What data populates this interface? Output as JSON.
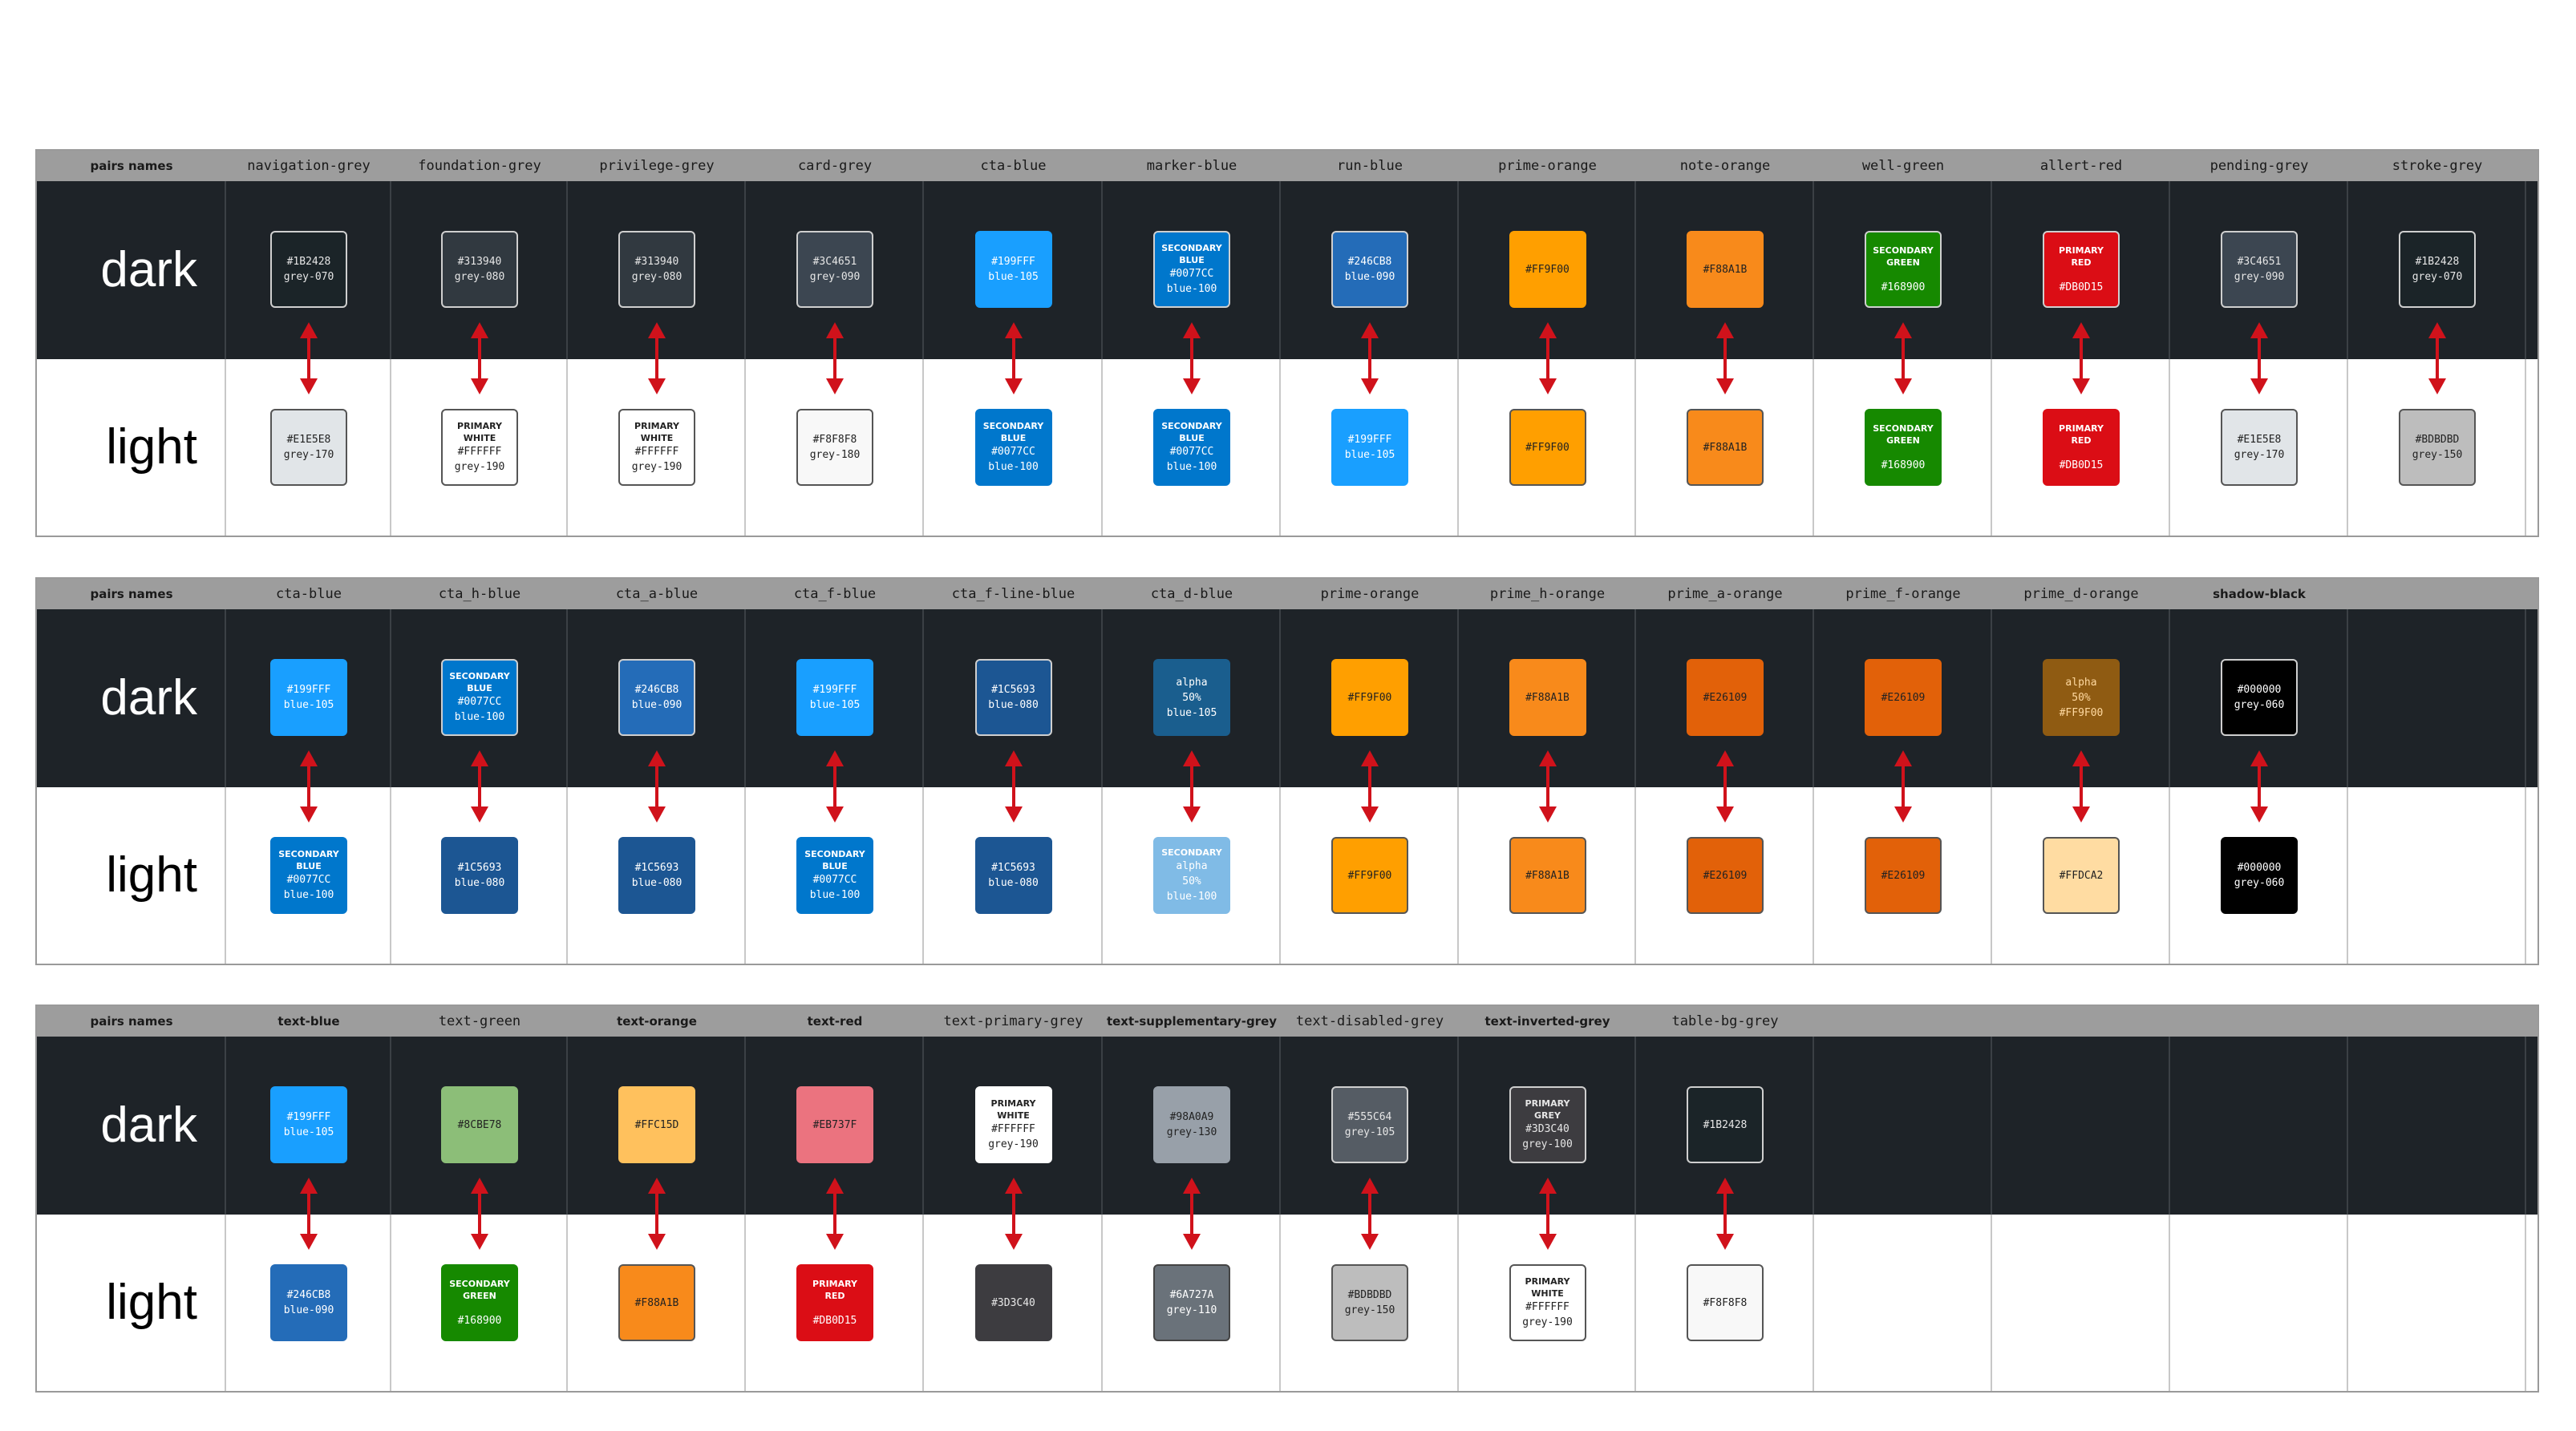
{
  "row_labels": {
    "dark": "dark",
    "light": "light"
  },
  "header_first": "pairs names",
  "tables": [
    {
      "columns": [
        {
          "name": "navigation-grey",
          "bold": false,
          "dark": {
            "lines": [
              "#1B2428",
              "grey-070"
            ],
            "bg": "#1b2428",
            "fg": "#e6e6e6",
            "border": "#cfcfcf"
          },
          "light": {
            "lines": [
              "#E1E5E8",
              "grey-170"
            ],
            "bg": "#e1e5e8",
            "fg": "#222222",
            "border": "#555555"
          }
        },
        {
          "name": "foundation-grey",
          "bold": false,
          "dark": {
            "lines": [
              "#313940",
              "grey-080"
            ],
            "bg": "#313940",
            "fg": "#e6e6e6",
            "border": "#cfcfcf"
          },
          "light": {
            "lines": [
              "PRIMARY",
              "WHITE",
              "#FFFFFF",
              "grey-190"
            ],
            "bg": "#ffffff",
            "fg": "#222222",
            "border": "#555555"
          }
        },
        {
          "name": "privilege-grey",
          "bold": false,
          "dark": {
            "lines": [
              "#313940",
              "grey-080"
            ],
            "bg": "#313940",
            "fg": "#e6e6e6",
            "border": "#cfcfcf"
          },
          "light": {
            "lines": [
              "PRIMARY",
              "WHITE",
              "#FFFFFF",
              "grey-190"
            ],
            "bg": "#ffffff",
            "fg": "#222222",
            "border": "#555555"
          }
        },
        {
          "name": "card-grey",
          "bold": false,
          "dark": {
            "lines": [
              "#3C4651",
              "grey-090"
            ],
            "bg": "#3c4651",
            "fg": "#e6e6e6",
            "border": "#cfcfcf"
          },
          "light": {
            "lines": [
              "#F8F8F8",
              "grey-180"
            ],
            "bg": "#f8f8f8",
            "fg": "#222222",
            "border": "#555555"
          }
        },
        {
          "name": "cta-blue",
          "bold": false,
          "dark": {
            "lines": [
              "#199FFF",
              "blue-105"
            ],
            "bg": "#199fff",
            "fg": "#ffffff",
            "border": "#199fff"
          },
          "light": {
            "lines": [
              "SECONDARY",
              "BLUE",
              "#0077CC",
              "blue-100"
            ],
            "bg": "#0077cc",
            "fg": "#ffffff",
            "border": "#0077cc"
          }
        },
        {
          "name": "marker-blue",
          "bold": false,
          "dark": {
            "lines": [
              "SECONDARY",
              "BLUE",
              "#0077CC",
              "blue-100"
            ],
            "bg": "#0077cc",
            "fg": "#ffffff",
            "border": "#cfcfcf"
          },
          "light": {
            "lines": [
              "SECONDARY",
              "BLUE",
              "#0077CC",
              "blue-100"
            ],
            "bg": "#0077cc",
            "fg": "#ffffff",
            "border": "#0077cc"
          }
        },
        {
          "name": "run-blue",
          "bold": false,
          "dark": {
            "lines": [
              "#246CB8",
              "blue-090"
            ],
            "bg": "#246cb8",
            "fg": "#ffffff",
            "border": "#cfcfcf"
          },
          "light": {
            "lines": [
              "#199FFF",
              "blue-105"
            ],
            "bg": "#199fff",
            "fg": "#ffffff",
            "border": "#199fff"
          }
        },
        {
          "name": "prime-orange",
          "bold": false,
          "dark": {
            "lines": [
              "#FF9F00"
            ],
            "bg": "#ff9f00",
            "fg": "#222222",
            "border": "#ff9f00"
          },
          "light": {
            "lines": [
              "#FF9F00"
            ],
            "bg": "#ff9f00",
            "fg": "#222222",
            "border": "#555555"
          }
        },
        {
          "name": "note-orange",
          "bold": false,
          "dark": {
            "lines": [
              "#F88A1B"
            ],
            "bg": "#f88a1b",
            "fg": "#222222",
            "border": "#f88a1b"
          },
          "light": {
            "lines": [
              "#F88A1B"
            ],
            "bg": "#f88a1b",
            "fg": "#222222",
            "border": "#555555"
          }
        },
        {
          "name": "well-green",
          "bold": false,
          "dark": {
            "lines": [
              "SECONDARY",
              "GREEN",
              "",
              "#168900"
            ],
            "bg": "#168900",
            "fg": "#ffffff",
            "border": "#cfcfcf"
          },
          "light": {
            "lines": [
              "SECONDARY",
              "GREEN",
              "",
              "#168900"
            ],
            "bg": "#168900",
            "fg": "#ffffff",
            "border": "#168900"
          }
        },
        {
          "name": "allert-red",
          "bold": false,
          "dark": {
            "lines": [
              "PRIMARY",
              "RED",
              "",
              "#DB0D15"
            ],
            "bg": "#db0d15",
            "fg": "#ffffff",
            "border": "#cfcfcf"
          },
          "light": {
            "lines": [
              "PRIMARY",
              "RED",
              "",
              "#DB0D15"
            ],
            "bg": "#db0d15",
            "fg": "#ffffff",
            "border": "#db0d15"
          }
        },
        {
          "name": "pending-grey",
          "bold": false,
          "dark": {
            "lines": [
              "#3C4651",
              "grey-090"
            ],
            "bg": "#3c4651",
            "fg": "#e6e6e6",
            "border": "#cfcfcf"
          },
          "light": {
            "lines": [
              "#E1E5E8",
              "grey-170"
            ],
            "bg": "#e1e5e8",
            "fg": "#222222",
            "border": "#555555"
          }
        },
        {
          "name": "stroke-grey",
          "bold": false,
          "dark": {
            "lines": [
              "#1B2428",
              "grey-070"
            ],
            "bg": "#1b2428",
            "fg": "#e6e6e6",
            "border": "#cfcfcf"
          },
          "light": {
            "lines": [
              "#BDBDBD",
              "grey-150"
            ],
            "bg": "#bdbdbd",
            "fg": "#222222",
            "border": "#555555"
          }
        }
      ]
    },
    {
      "columns": [
        {
          "name": "cta-blue",
          "bold": false,
          "dark": {
            "lines": [
              "#199FFF",
              "blue-105"
            ],
            "bg": "#199fff",
            "fg": "#ffffff",
            "border": "#199fff"
          },
          "light": {
            "lines": [
              "SECONDARY",
              "BLUE",
              "#0077CC",
              "blue-100"
            ],
            "bg": "#0077cc",
            "fg": "#ffffff",
            "border": "#0077cc"
          }
        },
        {
          "name": "cta_h-blue",
          "bold": false,
          "dark": {
            "lines": [
              "SECONDARY",
              "BLUE",
              "#0077CC",
              "blue-100"
            ],
            "bg": "#0077cc",
            "fg": "#ffffff",
            "border": "#cfcfcf"
          },
          "light": {
            "lines": [
              "#1C5693",
              "blue-080"
            ],
            "bg": "#1c5693",
            "fg": "#ffffff",
            "border": "#1c5693"
          }
        },
        {
          "name": "cta_a-blue",
          "bold": false,
          "dark": {
            "lines": [
              "#246CB8",
              "blue-090"
            ],
            "bg": "#246cb8",
            "fg": "#ffffff",
            "border": "#cfcfcf"
          },
          "light": {
            "lines": [
              "#1C5693",
              "blue-080"
            ],
            "bg": "#1c5693",
            "fg": "#ffffff",
            "border": "#1c5693"
          }
        },
        {
          "name": "cta_f-blue",
          "bold": false,
          "dark": {
            "lines": [
              "#199FFF",
              "blue-105"
            ],
            "bg": "#199fff",
            "fg": "#ffffff",
            "border": "#199fff"
          },
          "light": {
            "lines": [
              "SECONDARY",
              "BLUE",
              "#0077CC",
              "blue-100"
            ],
            "bg": "#0077cc",
            "fg": "#ffffff",
            "border": "#0077cc"
          }
        },
        {
          "name": "cta_f-line-blue",
          "bold": false,
          "dark": {
            "lines": [
              "#1C5693",
              "blue-080"
            ],
            "bg": "#1c5693",
            "fg": "#ffffff",
            "border": "#cfcfcf"
          },
          "light": {
            "lines": [
              "#1C5693",
              "blue-080"
            ],
            "bg": "#1c5693",
            "fg": "#ffffff",
            "border": "#1c5693"
          }
        },
        {
          "name": "cta_d-blue",
          "bold": false,
          "dark": {
            "lines": [
              "alpha",
              "50%",
              "blue-105"
            ],
            "bg": "#1a5e8e",
            "fg": "#ffffff",
            "border": "#1a5e8e"
          },
          "light": {
            "lines": [
              "SECONDARY",
              "alpha",
              "50%",
              "blue-100"
            ],
            "bg": "#80bbe6",
            "fg": "#ffffff",
            "border": "#80bbe6"
          }
        },
        {
          "name": "prime-orange",
          "bold": false,
          "dark": {
            "lines": [
              "#FF9F00"
            ],
            "bg": "#ff9f00",
            "fg": "#222222",
            "border": "#ff9f00"
          },
          "light": {
            "lines": [
              "#FF9F00"
            ],
            "bg": "#ff9f00",
            "fg": "#222222",
            "border": "#555555"
          }
        },
        {
          "name": "prime_h-orange",
          "bold": false,
          "dark": {
            "lines": [
              "#F88A1B"
            ],
            "bg": "#f88a1b",
            "fg": "#222222",
            "border": "#f88a1b"
          },
          "light": {
            "lines": [
              "#F88A1B"
            ],
            "bg": "#f88a1b",
            "fg": "#222222",
            "border": "#555555"
          }
        },
        {
          "name": "prime_a-orange",
          "bold": false,
          "dark": {
            "lines": [
              "#E26109"
            ],
            "bg": "#e26109",
            "fg": "#222222",
            "border": "#e26109"
          },
          "light": {
            "lines": [
              "#E26109"
            ],
            "bg": "#e26109",
            "fg": "#222222",
            "border": "#555555"
          }
        },
        {
          "name": "prime_f-orange",
          "bold": false,
          "dark": {
            "lines": [
              "#E26109"
            ],
            "bg": "#e26109",
            "fg": "#222222",
            "border": "#e26109"
          },
          "light": {
            "lines": [
              "#E26109"
            ],
            "bg": "#e26109",
            "fg": "#222222",
            "border": "#555555"
          }
        },
        {
          "name": "prime_d-orange",
          "bold": false,
          "dark": {
            "lines": [
              "alpha",
              "50%",
              "#FF9F00"
            ],
            "bg": "#8f5b12",
            "fg": "#ffd9a0",
            "border": "#8f5b12"
          },
          "light": {
            "lines": [
              "#FFDCA2"
            ],
            "bg": "#ffdca2",
            "fg": "#222222",
            "border": "#555555"
          }
        },
        {
          "name": "shadow-black",
          "bold": true,
          "dark": {
            "lines": [
              "#000000",
              "grey-060"
            ],
            "bg": "#000000",
            "fg": "#ffffff",
            "border": "#cfcfcf"
          },
          "light": {
            "lines": [
              "#000000",
              "grey-060"
            ],
            "bg": "#000000",
            "fg": "#ffffff",
            "border": "#000000"
          }
        }
      ]
    },
    {
      "columns": [
        {
          "name": "text-blue",
          "bold": true,
          "dark": {
            "lines": [
              "#199FFF",
              "blue-105"
            ],
            "bg": "#199fff",
            "fg": "#ffffff",
            "border": "#199fff"
          },
          "light": {
            "lines": [
              "#246CB8",
              "blue-090"
            ],
            "bg": "#246cb8",
            "fg": "#ffffff",
            "border": "#246cb8"
          }
        },
        {
          "name": "text-green",
          "bold": false,
          "dark": {
            "lines": [
              "#8CBE78"
            ],
            "bg": "#8cbe78",
            "fg": "#222222",
            "border": "#8cbe78"
          },
          "light": {
            "lines": [
              "SECONDARY",
              "GREEN",
              "",
              "#168900"
            ],
            "bg": "#168900",
            "fg": "#ffffff",
            "border": "#168900"
          }
        },
        {
          "name": "text-orange",
          "bold": true,
          "dark": {
            "lines": [
              "#FFC15D"
            ],
            "bg": "#ffc15d",
            "fg": "#222222",
            "border": "#ffc15d"
          },
          "light": {
            "lines": [
              "#F88A1B"
            ],
            "bg": "#f88a1b",
            "fg": "#222222",
            "border": "#555555"
          }
        },
        {
          "name": "text-red",
          "bold": true,
          "dark": {
            "lines": [
              "#EB737F"
            ],
            "bg": "#eb737f",
            "fg": "#222222",
            "border": "#eb737f"
          },
          "light": {
            "lines": [
              "PRIMARY",
              "RED",
              "",
              "#DB0D15"
            ],
            "bg": "#db0d15",
            "fg": "#ffffff",
            "border": "#db0d15"
          }
        },
        {
          "name": "text-primary-grey",
          "bold": false,
          "dark": {
            "lines": [
              "PRIMARY",
              "WHITE",
              "#FFFFFF",
              "grey-190"
            ],
            "bg": "#ffffff",
            "fg": "#222222",
            "border": "#ffffff"
          },
          "light": {
            "lines": [
              "#3D3C40"
            ],
            "bg": "#3d3c40",
            "fg": "#e6e6e6",
            "border": "#3d3c40"
          }
        },
        {
          "name": "text-supplementary-grey",
          "bold": true,
          "dark": {
            "lines": [
              "#98A0A9",
              "grey-130"
            ],
            "bg": "#98a0a9",
            "fg": "#222222",
            "border": "#98a0a9"
          },
          "light": {
            "lines": [
              "#6A727A",
              "grey-110"
            ],
            "bg": "#6a727a",
            "fg": "#ffffff",
            "border": "#444444"
          }
        },
        {
          "name": "text-disabled-grey",
          "bold": false,
          "dark": {
            "lines": [
              "#555C64",
              "grey-105"
            ],
            "bg": "#555c64",
            "fg": "#e6e6e6",
            "border": "#cfcfcf"
          },
          "light": {
            "lines": [
              "#BDBDBD",
              "grey-150"
            ],
            "bg": "#bdbdbd",
            "fg": "#222222",
            "border": "#555555"
          }
        },
        {
          "name": "text-inverted-grey",
          "bold": true,
          "dark": {
            "lines": [
              "PRIMARY",
              "GREY",
              "#3D3C40",
              "grey-100"
            ],
            "bg": "#3d3c40",
            "fg": "#e6e6e6",
            "border": "#cfcfcf"
          },
          "light": {
            "lines": [
              "PRIMARY",
              "WHITE",
              "#FFFFFF",
              "grey-190"
            ],
            "bg": "#ffffff",
            "fg": "#222222",
            "border": "#555555"
          }
        },
        {
          "name": "table-bg-grey",
          "bold": false,
          "dark": {
            "lines": [
              "#1B2428"
            ],
            "bg": "#1b2428",
            "fg": "#e6e6e6",
            "border": "#cfcfcf"
          },
          "light": {
            "lines": [
              "#F8F8F8"
            ],
            "bg": "#f8f8f8",
            "fg": "#222222",
            "border": "#555555"
          }
        }
      ]
    }
  ]
}
